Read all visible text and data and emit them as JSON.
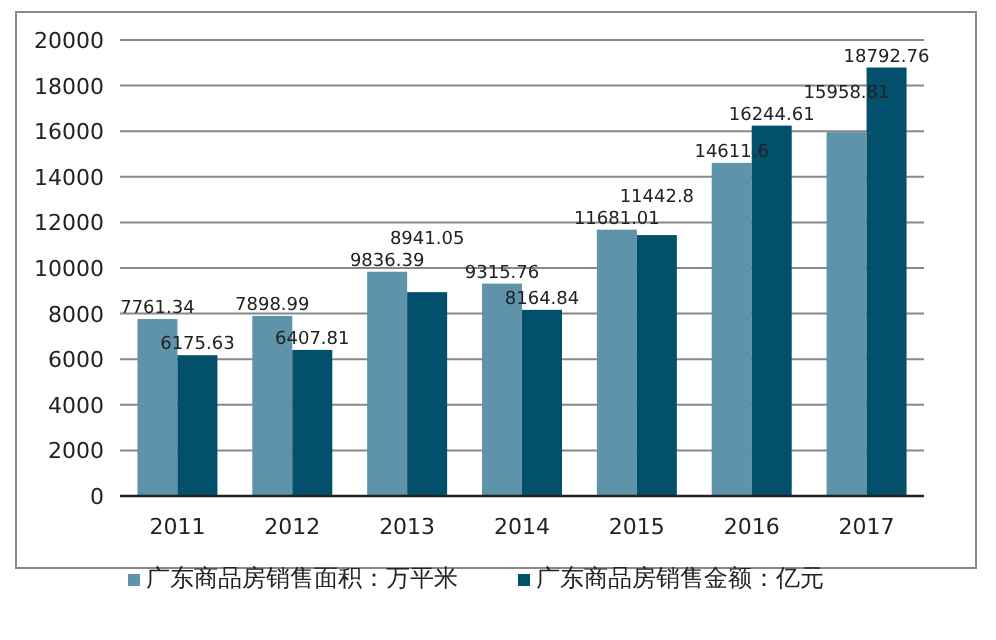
{
  "chart_data": {
    "type": "bar",
    "categories": [
      "2011",
      "2012",
      "2013",
      "2014",
      "2015",
      "2016",
      "2017"
    ],
    "series": [
      {
        "name": "广东商品房销售面积：万平米",
        "color": "#5f93aa",
        "values": [
          7761.34,
          7898.99,
          9836.39,
          9315.76,
          11681.01,
          14611.6,
          15958.81
        ]
      },
      {
        "name": "广东商品房销售金额：亿元",
        "color": "#02506b",
        "values": [
          6175.63,
          6407.81,
          8941.05,
          8164.84,
          11442.8,
          16244.61,
          18792.76
        ]
      }
    ],
    "ylim": [
      0,
      20000
    ],
    "yticks": [
      0,
      2000,
      4000,
      6000,
      8000,
      10000,
      12000,
      14000,
      16000,
      18000,
      20000
    ],
    "grid": "y",
    "legend": "bottom",
    "data_labels": true
  }
}
